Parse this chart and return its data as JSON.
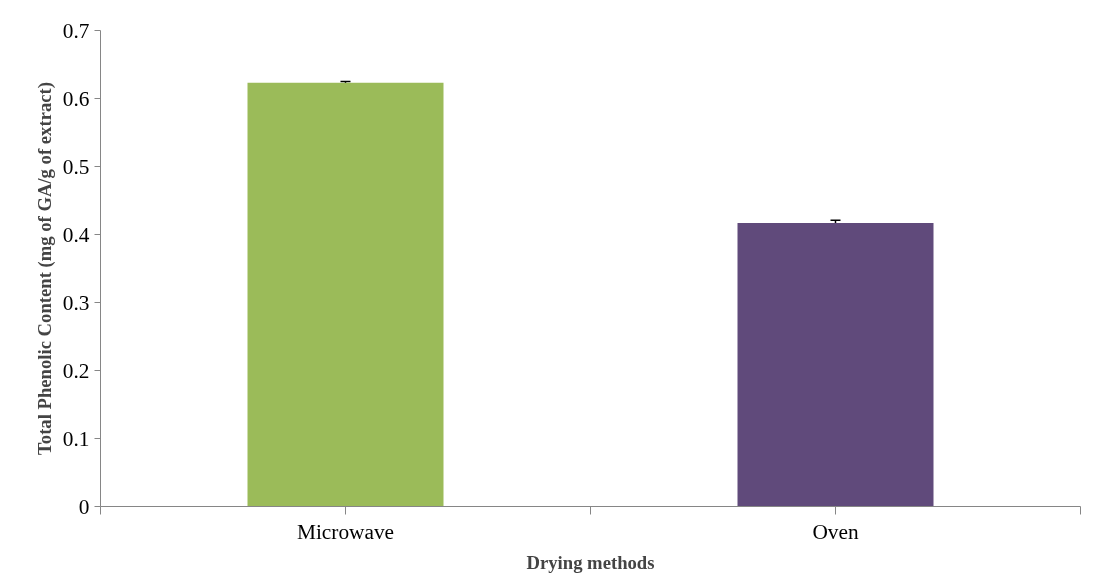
{
  "chart_data": {
    "type": "bar",
    "xlabel": "Drying methods",
    "ylabel": "Total Phenolic Content (mg of GA/g of extract)",
    "categories": [
      "Microwave",
      "Oven"
    ],
    "values": [
      0.623,
      0.417
    ],
    "colors": [
      "#9bbb59",
      "#604a7b"
    ],
    "errors": [
      0.002,
      0.004
    ],
    "ylim": [
      0,
      0.7
    ],
    "yticks": [
      0,
      0.1,
      0.2,
      0.3,
      0.4,
      0.5,
      0.6,
      0.7
    ],
    "grid": false
  }
}
